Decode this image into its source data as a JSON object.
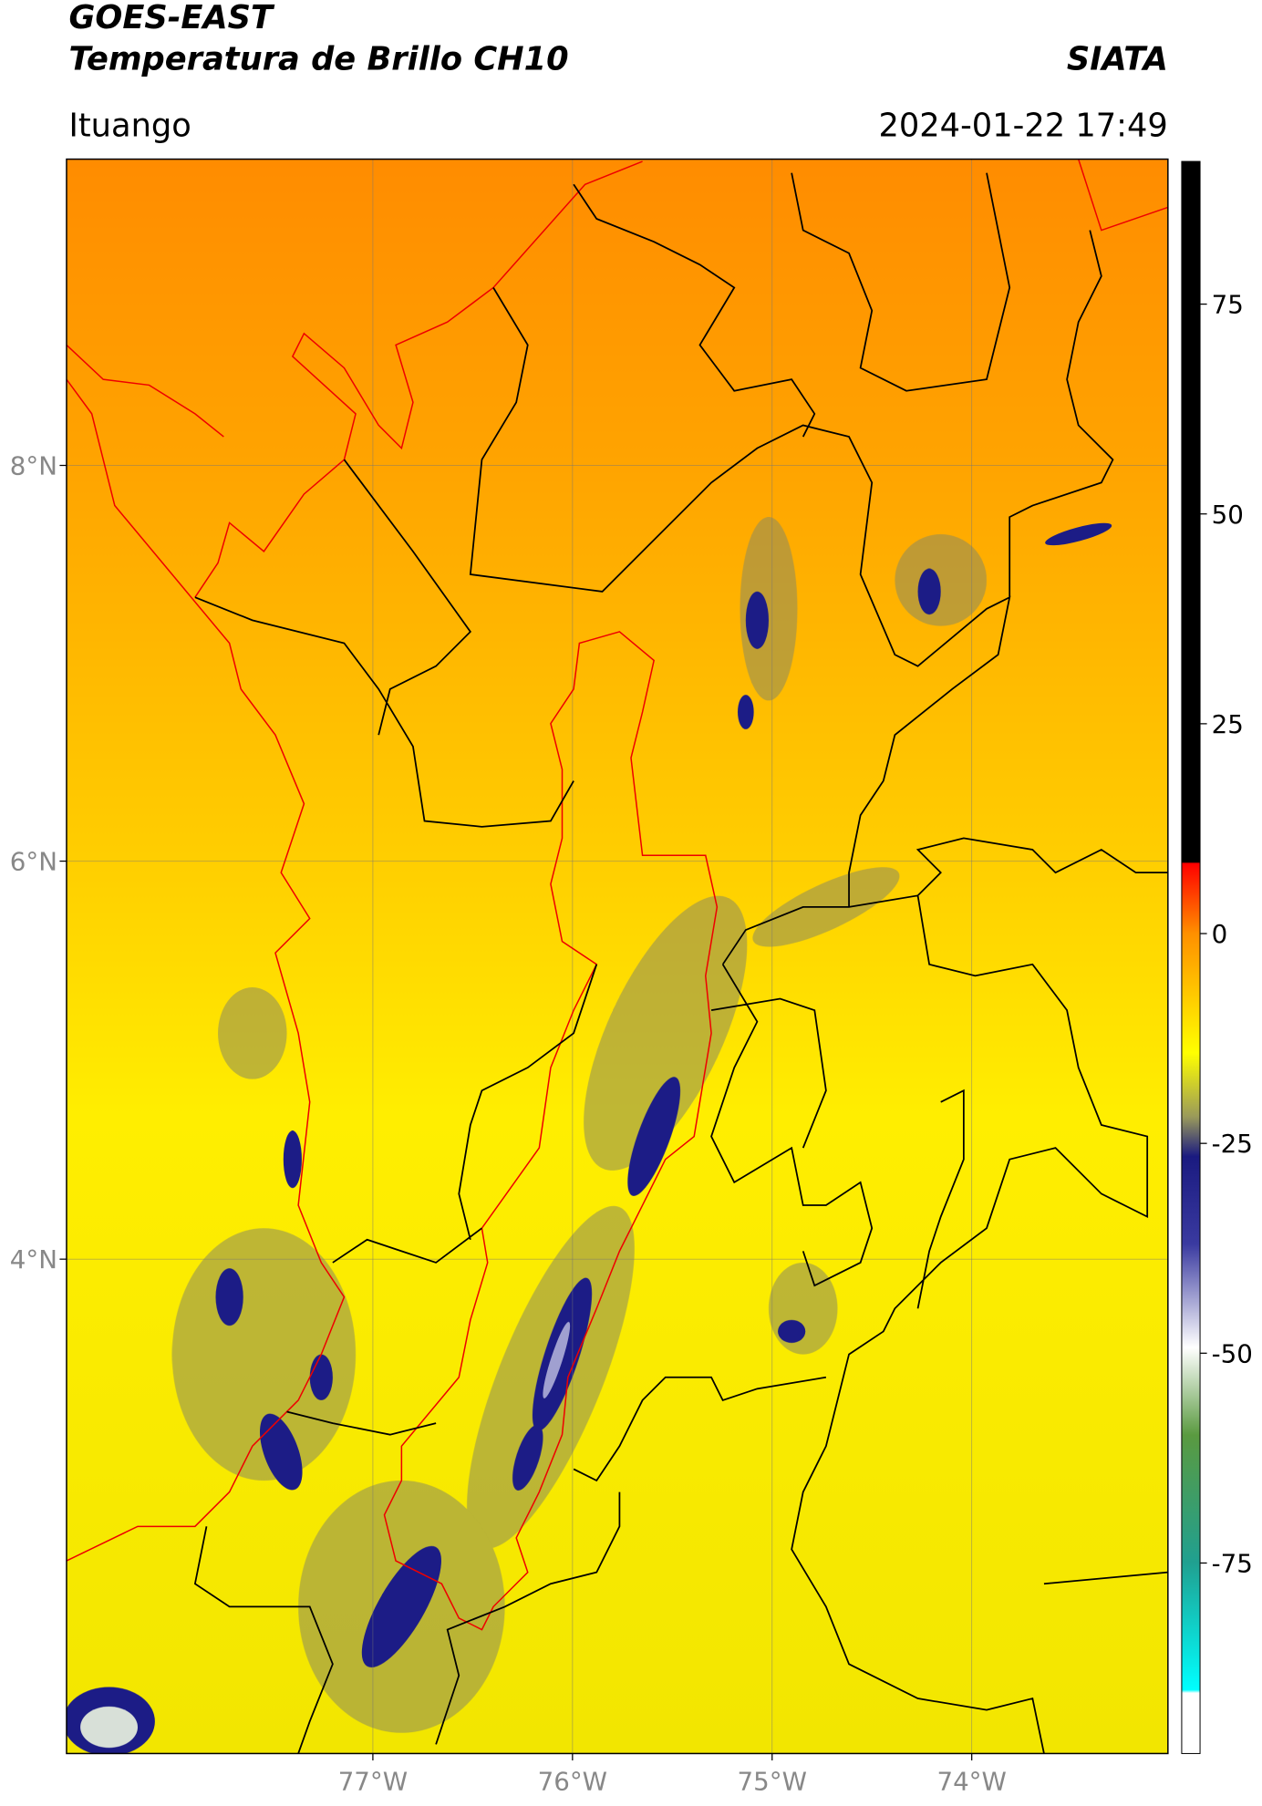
{
  "header": {
    "title": "GOES-EAST",
    "subtitle": "Temperatura de Brillo CH10",
    "agency": "SIATA",
    "location": "Ituango",
    "timestamp": "2024-01-22 17:49"
  },
  "map": {
    "lat_labels": [
      "8°N",
      "6°N",
      "4°N"
    ],
    "lon_labels": [
      "77°W",
      "76°W",
      "75°W",
      "74°W"
    ]
  },
  "colorbar": {
    "range": [
      -97.7,
      92
    ],
    "ticks": [
      75,
      50,
      25,
      0,
      -25,
      -50,
      -75
    ]
  }
}
